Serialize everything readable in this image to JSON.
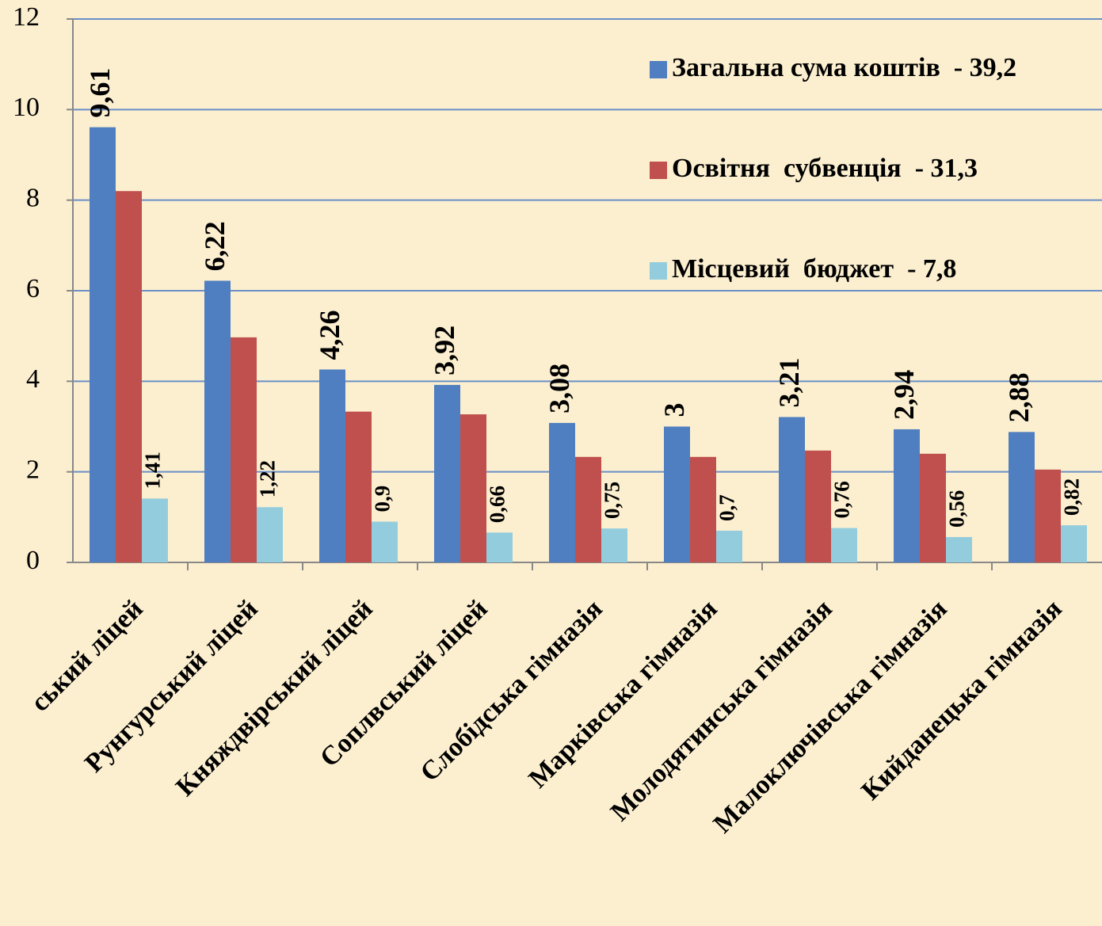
{
  "chart_data": {
    "type": "bar",
    "categories": [
      "ський ліцей",
      "Рунгурський ліцей",
      "Княждвірський ліцей",
      "Соплвський ліцей",
      "Слобідська гімназія",
      "Марківська гімназія",
      "Молодятинська гімназія",
      "Малоключівська гімназія",
      "Кийданецька гімназія"
    ],
    "series": [
      {
        "name": "Загальна сума коштів  - 39,2",
        "color": "#4f7fc0",
        "values": [
          9.61,
          6.22,
          4.26,
          3.92,
          3.08,
          3,
          3.21,
          2.94,
          2.88
        ],
        "value_labels": [
          "9,61",
          "6,22",
          "4,26",
          "3,92",
          "3,08",
          "3",
          "3,21",
          "2,94",
          "2,88"
        ]
      },
      {
        "name": "Освітня  субвенція  - 31,3",
        "color": "#c0504d",
        "values": [
          8.2,
          4.97,
          3.33,
          3.27,
          2.33,
          2.33,
          2.47,
          2.4,
          2.05
        ]
      },
      {
        "name": "Місцевий  бюджет  - 7,8",
        "color": "#93cddd",
        "values": [
          1.41,
          1.22,
          0.9,
          0.66,
          0.75,
          0.7,
          0.76,
          0.56,
          0.82
        ],
        "value_labels": [
          "1,41",
          "1,22",
          "0,9",
          "0,66",
          "0,75",
          "0,7",
          "0,76",
          "0,56",
          "0,82"
        ]
      }
    ],
    "ylim": [
      0,
      12
    ],
    "yticks": [
      0,
      2,
      4,
      6,
      8,
      10,
      12
    ],
    "grid": true,
    "legend": "top-right"
  }
}
